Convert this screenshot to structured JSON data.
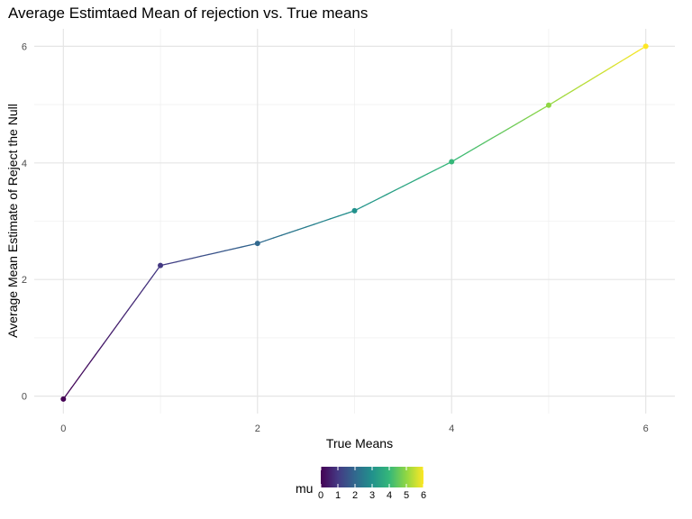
{
  "chart_data": {
    "type": "line",
    "title": "Average Estimtaed Mean of rejection vs. True means",
    "xlabel": "True Means",
    "ylabel": "Average Mean Estimate of Reject the Null",
    "x": [
      0,
      1,
      2,
      3,
      4,
      5,
      6
    ],
    "series": [
      {
        "values": [
          -0.05,
          2.24,
          2.62,
          3.18,
          4.02,
          4.99,
          6.0
        ]
      }
    ],
    "xlim": [
      -0.3,
      6.3
    ],
    "ylim": [
      -0.3,
      6.3
    ],
    "x_ticks": [
      0,
      2,
      4,
      6
    ],
    "y_ticks": [
      0,
      2,
      4,
      6
    ],
    "x_tick_labels": [
      "0",
      "2",
      "4",
      "6"
    ],
    "y_tick_labels": [
      "0",
      "2",
      "4",
      "6"
    ],
    "grid": true,
    "legend": {
      "title": "mu",
      "type": "colorbar",
      "palette": "viridis",
      "position": "bottom",
      "range": [
        0,
        6
      ],
      "ticks": [
        "0",
        "1",
        "2",
        "3",
        "4",
        "5",
        "6"
      ]
    },
    "colors": {
      "viridis_stops": [
        "#440154",
        "#443983",
        "#31688e",
        "#21918c",
        "#35b779",
        "#90d743",
        "#fde725"
      ]
    }
  }
}
